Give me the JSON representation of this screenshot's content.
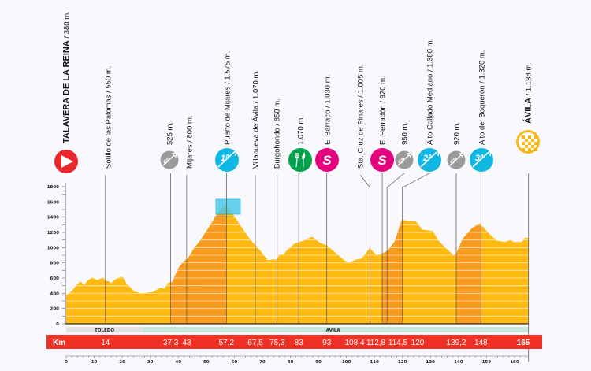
{
  "chart_data": {
    "type": "area",
    "title": "",
    "xlabel": "Km",
    "ylabel": "",
    "xlim": [
      0,
      165
    ],
    "ylim": [
      0,
      1800
    ],
    "yticks": [
      0,
      200,
      400,
      600,
      800,
      1000,
      1200,
      1400,
      1600,
      1800
    ],
    "xticks": [
      0,
      10,
      20,
      30,
      40,
      50,
      60,
      70,
      80,
      90,
      100,
      110,
      120,
      130,
      140,
      150,
      160
    ],
    "km_label": "Km",
    "profile": [
      [
        0,
        373
      ],
      [
        1.9,
        425
      ],
      [
        3.7,
        511
      ],
      [
        5.1,
        553
      ],
      [
        6.4,
        511
      ],
      [
        7.5,
        563
      ],
      [
        9.2,
        608
      ],
      [
        11.2,
        570
      ],
      [
        13.1,
        611
      ],
      [
        14,
        563
      ],
      [
        15.4,
        556
      ],
      [
        15.9,
        528
      ],
      [
        17.3,
        577
      ],
      [
        19.6,
        618
      ],
      [
        20.3,
        608
      ],
      [
        21.5,
        528
      ],
      [
        24.3,
        425
      ],
      [
        27.1,
        397
      ],
      [
        30.8,
        418
      ],
      [
        33.6,
        473
      ],
      [
        35,
        460
      ],
      [
        36.4,
        539
      ],
      [
        37.8,
        546
      ],
      [
        40.1,
        736
      ],
      [
        42,
        822
      ],
      [
        43.4,
        857
      ],
      [
        45.7,
        995
      ],
      [
        47.6,
        1081
      ],
      [
        51.3,
        1289
      ],
      [
        54.1,
        1455
      ],
      [
        56.9,
        1572
      ],
      [
        58.8,
        1479
      ],
      [
        62.5,
        1271
      ],
      [
        66.2,
        1081
      ],
      [
        68.1,
        1012
      ],
      [
        70,
        926
      ],
      [
        72,
        833
      ],
      [
        73.7,
        846
      ],
      [
        75.1,
        840
      ],
      [
        76.1,
        909
      ],
      [
        77.5,
        909
      ],
      [
        79.3,
        985
      ],
      [
        81.7,
        1056
      ],
      [
        84.5,
        1088
      ],
      [
        87.8,
        1143
      ],
      [
        91,
        1054
      ],
      [
        92.7,
        1036
      ],
      [
        95.7,
        943
      ],
      [
        99,
        840
      ],
      [
        100.8,
        798
      ],
      [
        103.2,
        840
      ],
      [
        105.5,
        857
      ],
      [
        108.3,
        995
      ],
      [
        110.6,
        902
      ],
      [
        112.5,
        916
      ],
      [
        114.8,
        960
      ],
      [
        117.2,
        1081
      ],
      [
        119.8,
        1365
      ],
      [
        120.9,
        1358
      ],
      [
        124.9,
        1341
      ],
      [
        127,
        1237
      ],
      [
        129.4,
        1226
      ],
      [
        130.8,
        1220
      ],
      [
        133.1,
        1081
      ],
      [
        135.4,
        995
      ],
      [
        138.2,
        902
      ],
      [
        139.2,
        919
      ],
      [
        141.5,
        1116
      ],
      [
        144.8,
        1254
      ],
      [
        147.6,
        1316
      ],
      [
        150.9,
        1185
      ],
      [
        153.7,
        1088
      ],
      [
        156.5,
        1075
      ],
      [
        158.6,
        1099
      ],
      [
        159.8,
        1071
      ],
      [
        162.6,
        1075
      ],
      [
        163.8,
        1133
      ],
      [
        165,
        1126
      ]
    ],
    "climbs": [
      [
        37.3,
        57.2
      ],
      [
        112.8,
        120
      ],
      [
        139.2,
        148
      ]
    ],
    "regions": [
      {
        "name": "TOLEDO",
        "from": 0,
        "to": 27.3
      },
      {
        "name": "ÁVILA",
        "from": 27.3,
        "to": 165
      }
    ],
    "waypoints": [
      {
        "km": 0,
        "km_label": "",
        "name": "TALAVERA DE LA REINA",
        "alt": " / 380 m.",
        "icon": "start"
      },
      {
        "km": 14,
        "km_label": "14",
        "name": "Sotillo de las Palomas",
        "alt": " / 550 m.",
        "icon": ""
      },
      {
        "km": 37.3,
        "km_label": "37,3",
        "name": "",
        "alt": "525 m.",
        "icon": "cp",
        "icon_text": "CP"
      },
      {
        "km": 43,
        "km_label": "43",
        "name": "Mijares",
        "alt": " / 800 m.",
        "icon": ""
      },
      {
        "km": 57.2,
        "km_label": "57,2",
        "name": "Puerto de Mijares",
        "alt": " / 1.575 m.",
        "icon": "climb",
        "icon_text": "1ª"
      },
      {
        "km": 67.5,
        "km_label": "67,5",
        "name": "Villanueva de Ávila",
        "alt": " / 1.070 m.",
        "icon": ""
      },
      {
        "km": 75.3,
        "km_label": "75,3",
        "name": "Burgohondo",
        "alt": " / 850 m.",
        "icon": ""
      },
      {
        "km": 83,
        "km_label": "83",
        "name": "",
        "alt": "1.070 m.",
        "icon": "feed"
      },
      {
        "km": 93,
        "km_label": "93",
        "name": "El Barraco",
        "alt": " / 1.030 m.",
        "icon": "sprint",
        "icon_text": "S"
      },
      {
        "km": 108.4,
        "km_label": "108,4",
        "name": "Sta. Cruz de Pinares",
        "alt": " / 1.005 m.",
        "icon": ""
      },
      {
        "km": 112.8,
        "km_label": "112,8",
        "name": "El Herradón",
        "alt": " / 920 m.",
        "icon": "sprint",
        "icon_text": "S"
      },
      {
        "km": 114.5,
        "km_label": "114,5",
        "name": "",
        "alt": "950 m.",
        "icon": "cp",
        "icon_text": "CP"
      },
      {
        "km": 120,
        "km_label": "120",
        "name": "Alto Collado Mediano",
        "alt": " / 1.380 m.",
        "icon": "climb",
        "icon_text": "2ª"
      },
      {
        "km": 139.2,
        "km_label": "139,2",
        "name": "",
        "alt": "920 m.",
        "icon": "cp",
        "icon_text": "CP"
      },
      {
        "km": 148,
        "km_label": "148",
        "name": "Alto del Boquerón",
        "alt": " / 1.320 m.",
        "icon": "climb",
        "icon_text": "3ª"
      },
      {
        "km": 165,
        "km_label": "165",
        "name": "ÁVILA",
        "alt": " / 1.138 m.",
        "icon": "finish"
      }
    ],
    "colors": {
      "profile": "#ffba12",
      "climb": "#f79a1e",
      "km_bar": "#ee3124",
      "start": "#e8262b",
      "cp": "#9a9a9a",
      "climb_icon": "#10b7e3",
      "sprint": "#e5007d",
      "feed": "#00a14b",
      "finish": "#f8b817",
      "toledo_band": "#e2e2e2",
      "avila_band": "#c9e7d9",
      "summit_box": "#4fc9ea"
    }
  }
}
